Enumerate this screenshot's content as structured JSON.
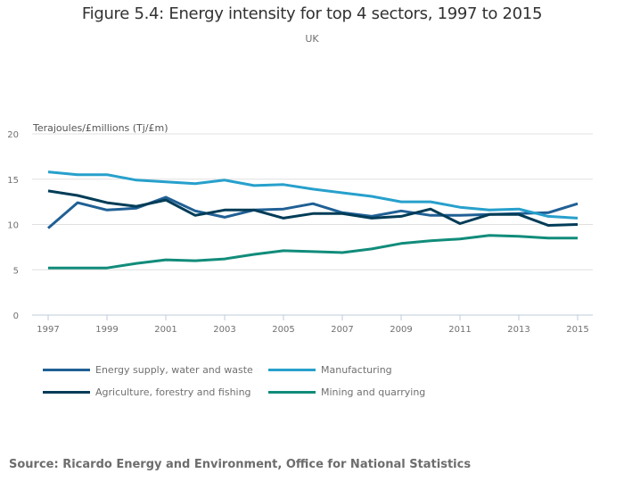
{
  "chart_data": {
    "type": "line",
    "title": "Figure 5.4: Energy intensity for top 4 sectors, 1997 to 2015",
    "subtitle": "UK",
    "xlabel": "",
    "ylabel": "Terajoules/£millions (Tj/£m)",
    "x": [
      1997,
      1998,
      1999,
      2000,
      2001,
      2002,
      2003,
      2004,
      2005,
      2006,
      2007,
      2008,
      2009,
      2010,
      2011,
      2012,
      2013,
      2014,
      2015
    ],
    "x_tick_labels": [
      "1997",
      "1999",
      "2001",
      "2003",
      "2005",
      "2007",
      "2009",
      "2011",
      "2013",
      "2015"
    ],
    "y_tick_labels": [
      "0",
      "5",
      "10",
      "15",
      "20"
    ],
    "y_ticks": [
      0,
      5,
      10,
      15,
      20
    ],
    "ylim": [
      0,
      20
    ],
    "xlim": [
      1997,
      2015
    ],
    "grid": true,
    "legend_position": "bottom-left",
    "series": [
      {
        "name": "Energy supply, water and waste",
        "color": "#206095",
        "values": [
          9.6,
          12.4,
          11.6,
          11.8,
          13.0,
          11.5,
          10.8,
          11.6,
          11.7,
          12.3,
          11.3,
          10.9,
          11.5,
          11.0,
          11.0,
          11.1,
          11.2,
          11.3,
          12.3
        ]
      },
      {
        "name": "Manufacturing",
        "color": "#27a0cc",
        "values": [
          15.8,
          15.5,
          15.5,
          14.9,
          14.7,
          14.5,
          14.9,
          14.3,
          14.4,
          13.9,
          13.5,
          13.1,
          12.5,
          12.5,
          11.9,
          11.6,
          11.7,
          10.9,
          10.7
        ]
      },
      {
        "name": "Agriculture, forestry and fishing",
        "color": "#003c57",
        "values": [
          13.7,
          13.2,
          12.4,
          12.0,
          12.7,
          11.0,
          11.6,
          11.6,
          10.7,
          11.2,
          11.2,
          10.7,
          10.9,
          11.7,
          10.1,
          11.1,
          11.1,
          9.9,
          10.0
        ]
      },
      {
        "name": "Mining and quarrying",
        "color": "#118c7b",
        "values": [
          5.2,
          5.2,
          5.2,
          5.7,
          6.1,
          6.0,
          6.2,
          6.7,
          7.1,
          7.0,
          6.9,
          7.3,
          7.9,
          8.2,
          8.4,
          8.8,
          8.7,
          8.5,
          8.5
        ]
      }
    ],
    "legend_order": [
      0,
      1,
      2,
      3
    ],
    "source": "Source: Ricardo Energy and Environment, Office for National Statistics"
  },
  "colors": {
    "gridline": "#e0e0e0",
    "axis": "#bfcbdc",
    "text": "#707071"
  }
}
